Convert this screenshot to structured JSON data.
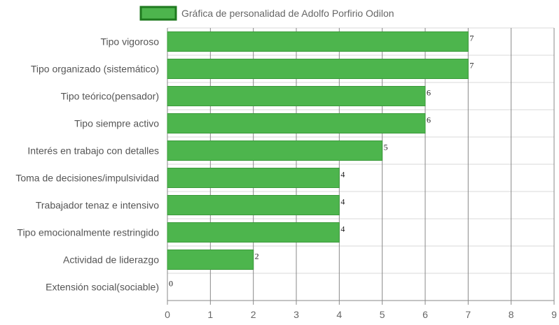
{
  "chart_data": {
    "type": "bar",
    "orientation": "horizontal",
    "legend": {
      "label": "Gráfica de personalidad de Adolfo Porfirio Odilon",
      "placement": "top-center"
    },
    "categories": [
      "Tipo vigoroso",
      "Tipo organizado (sistemático)",
      "Tipo teórico(pensador)",
      "Tipo siempre activo",
      "Interés en trabajo con detalles",
      "Toma de decisiones/impulsividad",
      "Trabajador tenaz e intensivo",
      "Tipo emocionalmente restringido",
      "Actividad de liderazgo",
      "Extensión social(sociable)"
    ],
    "values": [
      7,
      7,
      6,
      6,
      5,
      4,
      4,
      4,
      2,
      0
    ],
    "value_labels": [
      "7",
      "7",
      "6",
      "6",
      "5",
      "4",
      "4",
      "4",
      "2",
      "0"
    ],
    "x_ticks": [
      "0",
      "1",
      "2",
      "3",
      "4",
      "5",
      "6",
      "7",
      "8",
      "9"
    ],
    "xlim": [
      0,
      9
    ],
    "grid": true,
    "colors": {
      "bar_fill": "#4db54d",
      "bar_stroke": "#3a9a3a",
      "legend_fill": "#4db54d",
      "legend_stroke": "#1f7a1f",
      "grid": "#d9d9d9",
      "grid_major": "#888888"
    }
  }
}
